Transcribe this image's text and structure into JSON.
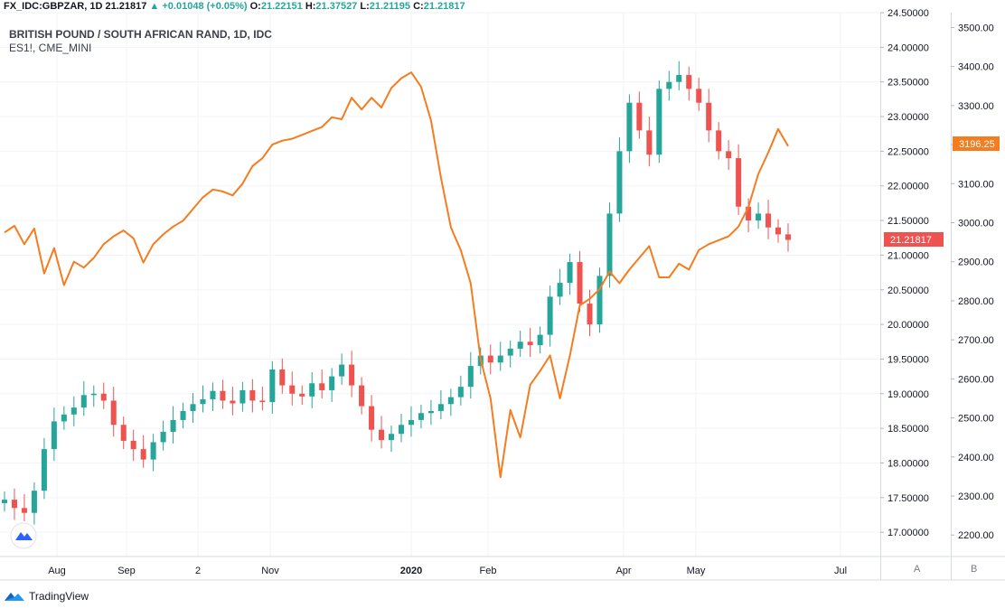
{
  "header": {
    "symbol": "FX_IDC:GBPZAR, 1D",
    "last": "21.21817",
    "change_arrow": "▲",
    "change": "+0.01048 (+0.05%)",
    "o_label": "O:",
    "o_val": "21.22151",
    "h_label": "H:",
    "h_val": "21.37527",
    "l_label": "L:",
    "l_val": "21.21195",
    "c_label": "C:",
    "c_val": "21.21817"
  },
  "legend": {
    "title": "BRITISH POUND / SOUTH AFRICAN RAND, 1D, IDC",
    "overlay": "ES1!, CME_MINI"
  },
  "price_badge": "21.21817",
  "es_badge": "3196.25",
  "scale_buttons": {
    "a": "A",
    "b": "B"
  },
  "brand": {
    "name": "TradingView",
    "icon": "tradingview-logo-icon"
  },
  "colors": {
    "up": "#26a69a",
    "down": "#ef5350",
    "overlay": "#f57c1f"
  },
  "chart_data": {
    "type": "line",
    "title": "BRITISH POUND / SOUTH AFRICAN RAND, 1D, IDC",
    "x_axis": {
      "ticks": [
        "Aug",
        "Sep",
        "2",
        "Nov",
        "2020",
        "Feb",
        "Apr",
        "May",
        "Jul"
      ]
    },
    "y_left": {
      "range": [
        16.65,
        24.5
      ],
      "ticks": [
        "24.50000",
        "24.00000",
        "23.50000",
        "23.00000",
        "22.50000",
        "22.00000",
        "21.50000",
        "21.00000",
        "20.50000",
        "20.00000",
        "19.50000",
        "19.00000",
        "18.50000",
        "18.00000",
        "17.50000",
        "17.00000"
      ]
    },
    "y_right": {
      "range": [
        2145,
        3538
      ],
      "ticks": [
        "3500.00",
        "3400.00",
        "3300.00",
        "3200.00",
        "3100.00",
        "3000.00",
        "2900.00",
        "2800.00",
        "2700.00",
        "2600.00",
        "2500.00",
        "2400.00",
        "2300.00",
        "2200.00"
      ]
    },
    "grid": true,
    "series": [
      {
        "name": "FX_IDC:GBPZAR",
        "style": "candles",
        "values": [
          17.47,
          17.35,
          17.28,
          17.6,
          18.2,
          18.6,
          18.7,
          18.8,
          18.98,
          19.0,
          18.9,
          18.55,
          18.32,
          18.2,
          18.05,
          18.3,
          18.45,
          18.62,
          18.75,
          18.85,
          18.92,
          19.04,
          18.9,
          18.86,
          19.05,
          18.9,
          18.88,
          19.35,
          19.12,
          19.0,
          18.96,
          19.15,
          19.05,
          19.25,
          19.42,
          19.12,
          18.82,
          18.48,
          18.33,
          18.42,
          18.55,
          18.62,
          18.72,
          18.75,
          18.85,
          18.95,
          19.1,
          19.4,
          19.55,
          19.45,
          19.55,
          19.65,
          19.75,
          19.7,
          19.85,
          20.4,
          20.6,
          20.9,
          20.3,
          20.0,
          20.7,
          21.6,
          22.5,
          23.2,
          22.8,
          22.45,
          23.4,
          23.5,
          23.6,
          23.4,
          23.2,
          22.8,
          22.5,
          22.4,
          21.7,
          21.5,
          21.6,
          21.4,
          21.3,
          21.22
        ]
      },
      {
        "name": "ES1!, CME_MINI",
        "style": "line",
        "values": [
          2975,
          2992,
          2945,
          2985,
          2870,
          2935,
          2840,
          2900,
          2885,
          2910,
          2945,
          2965,
          2980,
          2960,
          2898,
          2945,
          2970,
          2990,
          3005,
          3035,
          3065,
          3085,
          3080,
          3070,
          3100,
          3145,
          3165,
          3200,
          3210,
          3215,
          3225,
          3235,
          3245,
          3270,
          3265,
          3320,
          3290,
          3320,
          3295,
          3345,
          3370,
          3385,
          3348,
          3262,
          3115,
          2988,
          2930,
          2845,
          2650,
          2550,
          2348,
          2520,
          2450,
          2585,
          2620,
          2660,
          2550,
          2660,
          2788,
          2805,
          2830,
          2875,
          2845,
          2880,
          2910,
          2940,
          2860,
          2860,
          2895,
          2880,
          2930,
          2945,
          2955,
          2965,
          2990,
          3040,
          3125,
          3180,
          3240,
          3196
        ]
      }
    ]
  }
}
